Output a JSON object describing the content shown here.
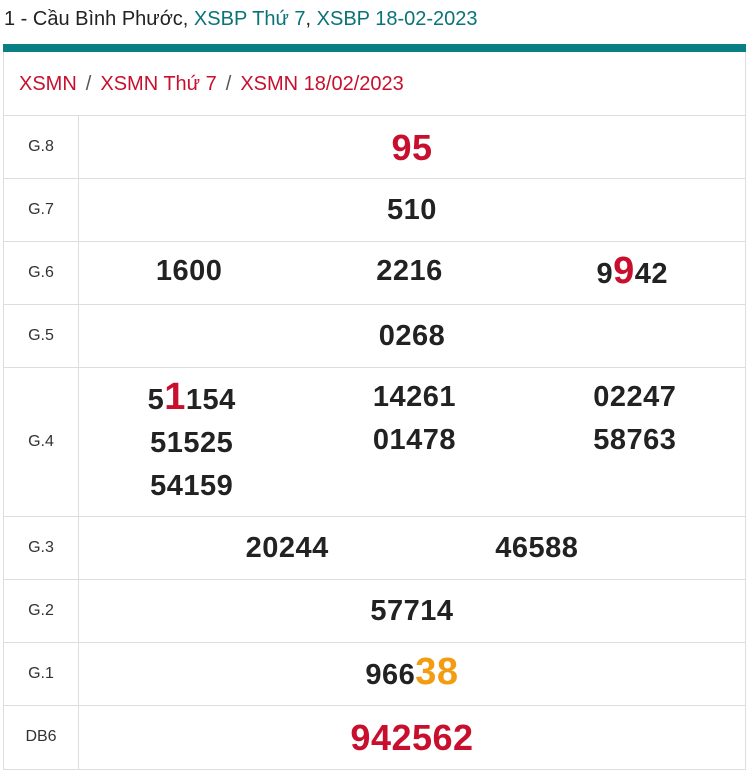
{
  "header": {
    "prefix": "1 - Cầu Bình Phước, ",
    "link1": "XSBP Thứ 7",
    "comma": ", ",
    "link2": "XSBP 18-02-2023"
  },
  "breadcrumb": [
    "XSMN",
    "XSMN Thứ 7",
    "XSMN 18/02/2023"
  ],
  "breadcrumb_sep": "/",
  "colors": {
    "teal": "#0a7f83",
    "red": "#c8102e",
    "orange": "#f39c12",
    "text": "#222222"
  },
  "prizes": [
    {
      "label": "G.8",
      "style": "big-red",
      "cols": [
        [
          [
            {
              "t": "95"
            }
          ]
        ]
      ]
    },
    {
      "label": "G.7",
      "cols": [
        [
          [
            {
              "t": "510"
            }
          ]
        ]
      ]
    },
    {
      "label": "G.6",
      "cols": [
        [
          [
            {
              "t": "1600"
            }
          ]
        ],
        [
          [
            {
              "t": "2216"
            }
          ]
        ],
        [
          [
            {
              "t": "9"
            },
            {
              "t": "9",
              "h": "red"
            },
            {
              "t": "42"
            }
          ]
        ]
      ]
    },
    {
      "label": "G.5",
      "cols": [
        [
          [
            {
              "t": "0268"
            }
          ]
        ]
      ]
    },
    {
      "label": "G.4",
      "cols": [
        [
          [
            {
              "t": "5"
            },
            {
              "t": "1",
              "h": "red"
            },
            {
              "t": "154"
            }
          ],
          [
            {
              "t": "51525"
            }
          ],
          [
            {
              "t": "54159"
            }
          ]
        ],
        [
          [
            {
              "t": "14261"
            }
          ],
          [
            {
              "t": "01478"
            }
          ]
        ],
        [
          [
            {
              "t": "02247"
            }
          ],
          [
            {
              "t": "58763"
            }
          ]
        ]
      ]
    },
    {
      "label": "G.3",
      "cols": [
        [
          [
            {
              "t": "20244"
            }
          ]
        ],
        [
          [
            {
              "t": "46588"
            }
          ]
        ]
      ]
    },
    {
      "label": "G.2",
      "cols": [
        [
          [
            {
              "t": "57714"
            }
          ]
        ]
      ]
    },
    {
      "label": "G.1",
      "cols": [
        [
          [
            {
              "t": "966"
            },
            {
              "t": "38",
              "h": "orange"
            }
          ]
        ]
      ]
    },
    {
      "label": "DB6",
      "style": "big-red",
      "cols": [
        [
          [
            {
              "t": "942562"
            }
          ]
        ]
      ]
    }
  ]
}
